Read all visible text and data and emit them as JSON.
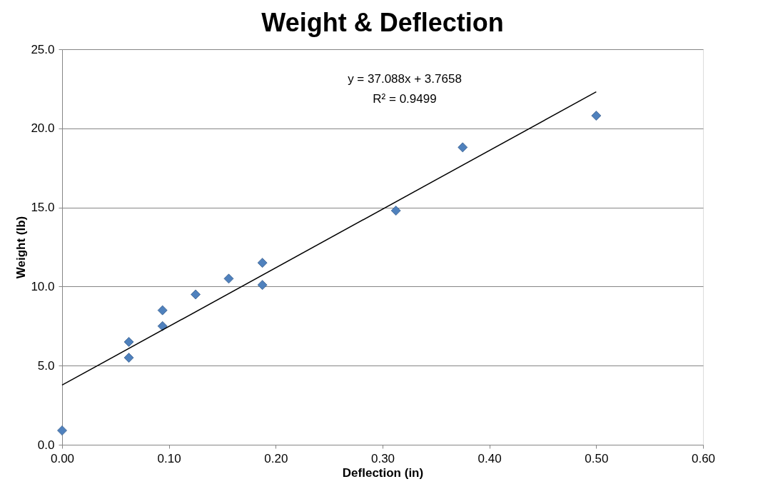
{
  "chart_data": {
    "type": "scatter",
    "title": "Weight & Deflection",
    "xlabel": "Deflection (in)",
    "ylabel": "Weight (lb)",
    "x": [
      0.0,
      0.0625,
      0.0625,
      0.094,
      0.094,
      0.125,
      0.156,
      0.1875,
      0.1875,
      0.3125,
      0.375,
      0.5
    ],
    "series": [
      {
        "color": "#4f81bd",
        "marker": "diamond",
        "values": [
          0.9,
          6.5,
          5.5,
          8.5,
          7.5,
          9.5,
          10.5,
          11.5,
          10.1,
          14.8,
          18.8,
          20.8
        ]
      },
      {
        "type": "line",
        "color": "#000000",
        "marker": "none",
        "line_style": "solid",
        "x": [
          0.0,
          0.5
        ],
        "values": [
          3.77,
          22.31
        ]
      }
    ],
    "annotations": [
      "y = 37.088x + 3.7658",
      "R² = 0.9499"
    ],
    "xlim": [
      0,
      0.6
    ],
    "xticks": [
      {
        "value": 0,
        "label": "0.00"
      },
      {
        "value": 0.1,
        "label": "0.10"
      },
      {
        "value": 0.2,
        "label": "0.20"
      },
      {
        "value": 0.3,
        "label": "0.30"
      },
      {
        "value": 0.4,
        "label": "0.40"
      },
      {
        "value": 0.5,
        "label": "0.50"
      },
      {
        "value": 0.6,
        "label": "0.60"
      }
    ],
    "ylim": [
      0,
      25
    ],
    "yticks": [
      {
        "value": 0,
        "label": "0.0"
      },
      {
        "value": 5,
        "label": "5.0"
      },
      {
        "value": 10,
        "label": "10.0"
      },
      {
        "value": 15,
        "label": "15.0"
      },
      {
        "value": 20,
        "label": "20.0"
      },
      {
        "value": 25,
        "label": "25.0"
      }
    ],
    "grid": "y"
  }
}
